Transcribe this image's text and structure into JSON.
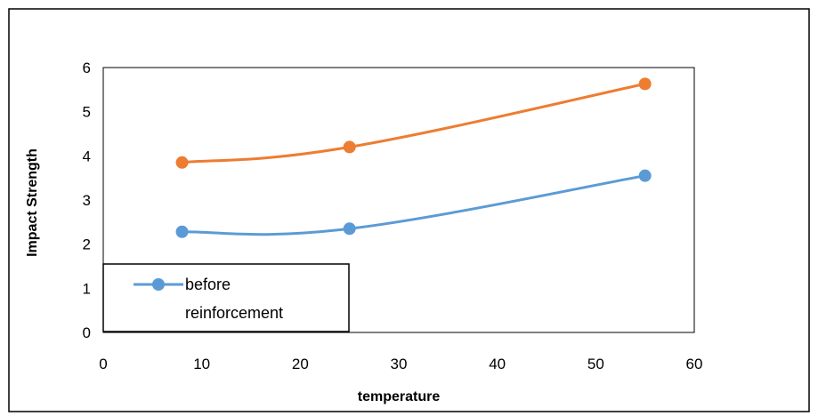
{
  "chart_data": {
    "type": "line",
    "title": "",
    "xlabel": "temperature",
    "ylabel": "Impact Strength",
    "xlim": [
      0,
      60
    ],
    "ylim": [
      0,
      6
    ],
    "xticks": [
      "0",
      "10",
      "20",
      "30",
      "40",
      "50",
      "60"
    ],
    "yticks": [
      "0",
      "1",
      "2",
      "3",
      "4",
      "5",
      "6"
    ],
    "grid": false,
    "legend_position": "bottom-left",
    "x": [
      8,
      25,
      55
    ],
    "series": [
      {
        "name": "",
        "values": [
          3.85,
          4.2,
          5.63
        ],
        "color": "#ED7D31"
      },
      {
        "name": "before",
        "name_line2": "reinforcement",
        "values": [
          2.28,
          2.35,
          3.55
        ],
        "color": "#5B9BD5"
      }
    ]
  }
}
